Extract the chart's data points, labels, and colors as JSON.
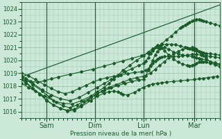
{
  "bg_color": "#cce8d8",
  "grid_color": "#99c4aa",
  "line_color": "#1a5c2a",
  "marker_color": "#1a5c2a",
  "xlabel_text": "Pression niveau de la mer( hPa )",
  "xlim": [
    0,
    4.3
  ],
  "ylim": [
    1015.5,
    1024.5
  ],
  "yticks": [
    1016,
    1017,
    1018,
    1019,
    1020,
    1021,
    1022,
    1023,
    1024
  ],
  "xtick_positions": [
    0.55,
    1.6,
    2.65,
    3.75
  ],
  "xtick_labels": [
    "Sam",
    "Dim",
    "Lun",
    "Mar"
  ],
  "vlines": [
    0.55,
    1.6,
    2.65,
    3.75
  ],
  "series_straight": {
    "x": [
      0.0,
      4.3
    ],
    "y": [
      1018.7,
      1024.3
    ]
  },
  "series_dip1": {
    "x": [
      0.0,
      0.1,
      0.25,
      0.4,
      0.55,
      0.7,
      0.85,
      1.0,
      1.15,
      1.3,
      1.45,
      1.6,
      1.75,
      1.9,
      2.05,
      2.2,
      2.35,
      2.5,
      2.65,
      2.8,
      2.9,
      3.0,
      3.1,
      3.2,
      3.3,
      3.4,
      3.5,
      3.6,
      3.7,
      3.75,
      3.8,
      3.85,
      3.9,
      3.95,
      4.0,
      4.1,
      4.2,
      4.3
    ],
    "y": [
      1018.5,
      1018.2,
      1017.8,
      1017.4,
      1016.9,
      1016.5,
      1016.25,
      1016.1,
      1016.2,
      1016.5,
      1016.9,
      1017.3,
      1017.6,
      1017.9,
      1018.1,
      1018.3,
      1018.5,
      1018.65,
      1018.75,
      1019.0,
      1019.3,
      1019.6,
      1019.9,
      1020.2,
      1020.5,
      1020.7,
      1020.85,
      1020.95,
      1021.0,
      1020.95,
      1020.85,
      1020.7,
      1020.5,
      1020.35,
      1020.2,
      1019.85,
      1019.65,
      1019.5
    ]
  },
  "series_dip2": {
    "x": [
      0.0,
      0.1,
      0.25,
      0.45,
      0.6,
      0.75,
      0.9,
      1.05,
      1.2,
      1.35,
      1.5,
      1.65,
      1.8,
      1.95,
      2.1,
      2.25,
      2.4,
      2.55,
      2.65,
      2.7,
      2.75,
      2.8,
      2.85,
      2.9,
      2.95,
      3.0,
      3.1,
      3.2,
      3.3,
      3.4,
      3.5,
      3.6,
      3.7,
      3.75,
      3.8,
      3.85,
      3.9,
      4.0,
      4.1,
      4.2,
      4.3
    ],
    "y": [
      1018.7,
      1018.5,
      1018.1,
      1017.6,
      1017.15,
      1016.75,
      1016.45,
      1016.3,
      1016.5,
      1016.8,
      1017.1,
      1017.4,
      1017.65,
      1017.85,
      1018.05,
      1018.2,
      1018.35,
      1018.45,
      1018.5,
      1018.8,
      1019.2,
      1019.6,
      1020.0,
      1020.4,
      1020.7,
      1020.9,
      1021.0,
      1020.85,
      1020.65,
      1020.5,
      1020.4,
      1020.35,
      1020.3,
      1020.25,
      1020.2,
      1020.15,
      1020.1,
      1020.05,
      1019.9,
      1019.8,
      1019.7
    ]
  },
  "series_dip3": {
    "x": [
      0.0,
      0.15,
      0.3,
      0.5,
      0.65,
      0.8,
      0.95,
      1.1,
      1.25,
      1.4,
      1.55,
      1.7,
      1.85,
      2.0,
      2.15,
      2.3,
      2.45,
      2.6,
      2.7,
      2.75,
      2.8,
      2.85,
      2.9,
      2.95,
      3.0,
      3.05,
      3.1,
      3.2,
      3.3,
      3.4,
      3.5,
      3.6,
      3.7,
      3.8,
      3.9,
      4.0,
      4.1,
      4.2,
      4.3
    ],
    "y": [
      1019.0,
      1018.8,
      1018.5,
      1018.1,
      1017.8,
      1017.55,
      1017.4,
      1017.55,
      1017.8,
      1018.05,
      1018.3,
      1018.5,
      1018.65,
      1018.75,
      1018.85,
      1018.95,
      1019.05,
      1019.1,
      1019.2,
      1019.35,
      1019.55,
      1019.75,
      1019.95,
      1020.1,
      1020.2,
      1020.25,
      1020.3,
      1020.3,
      1020.3,
      1020.3,
      1020.35,
      1020.4,
      1020.45,
      1020.45,
      1020.4,
      1020.35,
      1020.3,
      1020.25,
      1020.2
    ]
  },
  "series_deep_dip": {
    "x": [
      0.0,
      0.1,
      0.25,
      0.4,
      0.55,
      0.7,
      0.85,
      1.0,
      1.15,
      1.3,
      1.5,
      1.65,
      1.8,
      1.9,
      2.0,
      2.1,
      2.15,
      2.2,
      2.3,
      2.45,
      2.55,
      2.65,
      2.75,
      2.85,
      2.95,
      3.05,
      3.15,
      3.3,
      3.45,
      3.6,
      3.75,
      3.85,
      3.95,
      4.05,
      4.15,
      4.25
    ],
    "y": [
      1018.6,
      1018.3,
      1017.8,
      1017.35,
      1016.85,
      1016.5,
      1016.25,
      1016.05,
      1016.1,
      1016.4,
      1016.85,
      1017.2,
      1017.45,
      1017.55,
      1017.6,
      1017.55,
      1017.45,
      1017.35,
      1017.3,
      1017.5,
      1017.7,
      1017.9,
      1018.05,
      1018.15,
      1018.2,
      1018.25,
      1018.3,
      1018.35,
      1018.4,
      1018.45,
      1018.5,
      1018.55,
      1018.6,
      1018.65,
      1018.7,
      1018.75
    ]
  },
  "series_up1": {
    "x": [
      0.0,
      0.1,
      0.25,
      0.45,
      0.65,
      0.85,
      1.05,
      1.25,
      1.45,
      1.65,
      1.8,
      1.95,
      2.1,
      2.25,
      2.4,
      2.55,
      2.65,
      2.7,
      2.75,
      2.8,
      2.85,
      2.9,
      2.95,
      3.0,
      3.05,
      3.1,
      3.2,
      3.3,
      3.4,
      3.5,
      3.6,
      3.65,
      3.7,
      3.75,
      3.8,
      3.85,
      3.9,
      3.95,
      4.0,
      4.1,
      4.2,
      4.3
    ],
    "y": [
      1018.8,
      1018.6,
      1018.2,
      1017.7,
      1017.3,
      1017.0,
      1016.85,
      1017.1,
      1017.5,
      1017.9,
      1018.2,
      1018.5,
      1018.8,
      1019.1,
      1019.35,
      1019.6,
      1019.75,
      1019.95,
      1020.2,
      1020.5,
      1020.8,
      1021.0,
      1021.15,
      1021.1,
      1020.95,
      1020.75,
      1020.4,
      1020.1,
      1019.85,
      1019.7,
      1019.6,
      1019.55,
      1019.6,
      1019.65,
      1019.75,
      1019.85,
      1019.9,
      1019.9,
      1019.85,
      1019.75,
      1019.7,
      1019.65
    ]
  },
  "series_up2": {
    "x": [
      0.0,
      0.15,
      0.3,
      0.5,
      0.7,
      0.9,
      1.1,
      1.3,
      1.5,
      1.65,
      1.8,
      1.9,
      2.0,
      2.1,
      2.2,
      2.35,
      2.5,
      2.65,
      2.75,
      2.85,
      2.95,
      3.05,
      3.15,
      3.25,
      3.35,
      3.45,
      3.55,
      3.6,
      3.65,
      3.7,
      3.75,
      3.8,
      3.85,
      3.9,
      3.95,
      4.0,
      4.1,
      4.2,
      4.3
    ],
    "y": [
      1018.2,
      1017.9,
      1017.6,
      1017.2,
      1016.85,
      1016.65,
      1016.6,
      1016.85,
      1017.2,
      1017.55,
      1017.9,
      1018.2,
      1018.5,
      1018.85,
      1019.2,
      1019.6,
      1020.0,
      1020.35,
      1020.65,
      1020.9,
      1021.1,
      1021.2,
      1021.25,
      1021.25,
      1021.2,
      1021.1,
      1021.0,
      1020.95,
      1020.9,
      1020.85,
      1020.8,
      1020.75,
      1020.7,
      1020.65,
      1020.6,
      1020.55,
      1020.5,
      1020.45,
      1020.4
    ]
  },
  "series_steep": {
    "x": [
      0.0,
      0.1,
      0.2,
      0.35,
      0.5,
      0.65,
      0.8,
      1.05,
      1.3,
      1.55,
      1.8,
      2.0,
      2.2,
      2.4,
      2.6,
      2.75,
      2.85,
      2.95,
      3.05,
      3.15,
      3.25,
      3.35,
      3.45,
      3.5,
      3.55,
      3.6,
      3.65,
      3.7,
      3.75,
      3.8,
      3.85,
      3.9,
      3.95,
      4.0,
      4.1,
      4.2,
      4.3
    ],
    "y": [
      1018.5,
      1018.4,
      1018.35,
      1018.3,
      1018.4,
      1018.55,
      1018.7,
      1018.9,
      1019.1,
      1019.3,
      1019.55,
      1019.75,
      1019.95,
      1020.15,
      1020.35,
      1020.55,
      1020.75,
      1021.0,
      1021.3,
      1021.6,
      1021.9,
      1022.2,
      1022.5,
      1022.65,
      1022.75,
      1022.85,
      1022.95,
      1023.05,
      1023.1,
      1023.15,
      1023.15,
      1023.1,
      1023.05,
      1023.0,
      1022.9,
      1022.8,
      1022.7
    ]
  }
}
